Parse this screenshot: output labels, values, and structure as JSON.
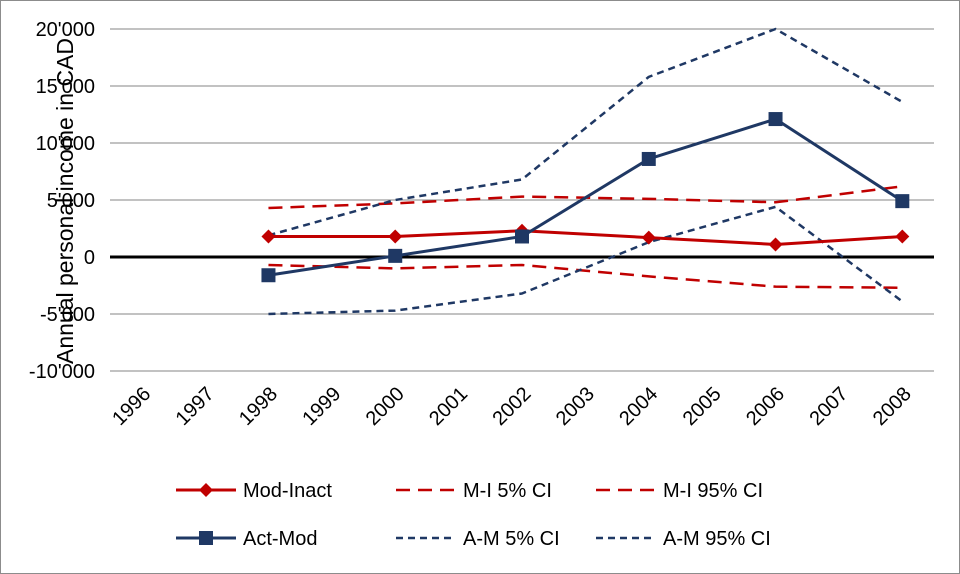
{
  "chart_data": {
    "type": "line",
    "title": "",
    "xlabel": "",
    "ylabel": "Annual personal income in CAD",
    "ylim": [
      -10000,
      20000
    ],
    "y_ticks": [
      -10000,
      -5000,
      0,
      5000,
      10000,
      15000,
      20000
    ],
    "y_tick_labels": [
      "-10'000",
      "-5'000",
      "0",
      "5'000",
      "10'000",
      "15'000",
      "20'000"
    ],
    "categories": [
      "1996",
      "1997",
      "1998",
      "1999",
      "2000",
      "2001",
      "2002",
      "2003",
      "2004",
      "2005",
      "2006",
      "2007",
      "2008"
    ],
    "grid": "horizontal",
    "legend_position": "bottom",
    "zero_line": true,
    "series": [
      {
        "name": "Mod-Inact",
        "color": "#c00000",
        "style": "solid",
        "marker": "diamond",
        "points": [
          [
            "1998",
            1800
          ],
          [
            "2000",
            1800
          ],
          [
            "2002",
            2300
          ],
          [
            "2004",
            1700
          ],
          [
            "2006",
            1100
          ],
          [
            "2008",
            1800
          ]
        ]
      },
      {
        "name": "M-I  5% CI",
        "color": "#c00000",
        "style": "dashed",
        "marker": "none",
        "points": [
          [
            "1998",
            -700
          ],
          [
            "2000",
            -1000
          ],
          [
            "2002",
            -700
          ],
          [
            "2004",
            -1700
          ],
          [
            "2006",
            -2600
          ],
          [
            "2008",
            -2700
          ]
        ]
      },
      {
        "name": "M-I 95% CI",
        "color": "#c00000",
        "style": "dashed",
        "marker": "none",
        "points": [
          [
            "1998",
            4300
          ],
          [
            "2000",
            4700
          ],
          [
            "2002",
            5300
          ],
          [
            "2004",
            5100
          ],
          [
            "2006",
            4800
          ],
          [
            "2008",
            6200
          ]
        ]
      },
      {
        "name": "Act-Mod",
        "color": "#1f3864",
        "style": "solid",
        "marker": "square",
        "points": [
          [
            "1998",
            -1600
          ],
          [
            "2000",
            100
          ],
          [
            "2002",
            1800
          ],
          [
            "2004",
            8600
          ],
          [
            "2006",
            12100
          ],
          [
            "2008",
            4900
          ]
        ]
      },
      {
        "name": "A-M  5% CI",
        "color": "#1f3864",
        "style": "dotted",
        "marker": "none",
        "points": [
          [
            "1998",
            -5000
          ],
          [
            "2000",
            -4700
          ],
          [
            "2002",
            -3200
          ],
          [
            "2004",
            1300
          ],
          [
            "2006",
            4400
          ],
          [
            "2008",
            -3900
          ]
        ]
      },
      {
        "name": "A-M 95% CI",
        "color": "#1f3864",
        "style": "dotted",
        "marker": "none",
        "points": [
          [
            "1998",
            1900
          ],
          [
            "2000",
            5000
          ],
          [
            "2002",
            6800
          ],
          [
            "2004",
            15800
          ],
          [
            "2006",
            20000
          ],
          [
            "2008",
            13600
          ]
        ]
      }
    ]
  }
}
